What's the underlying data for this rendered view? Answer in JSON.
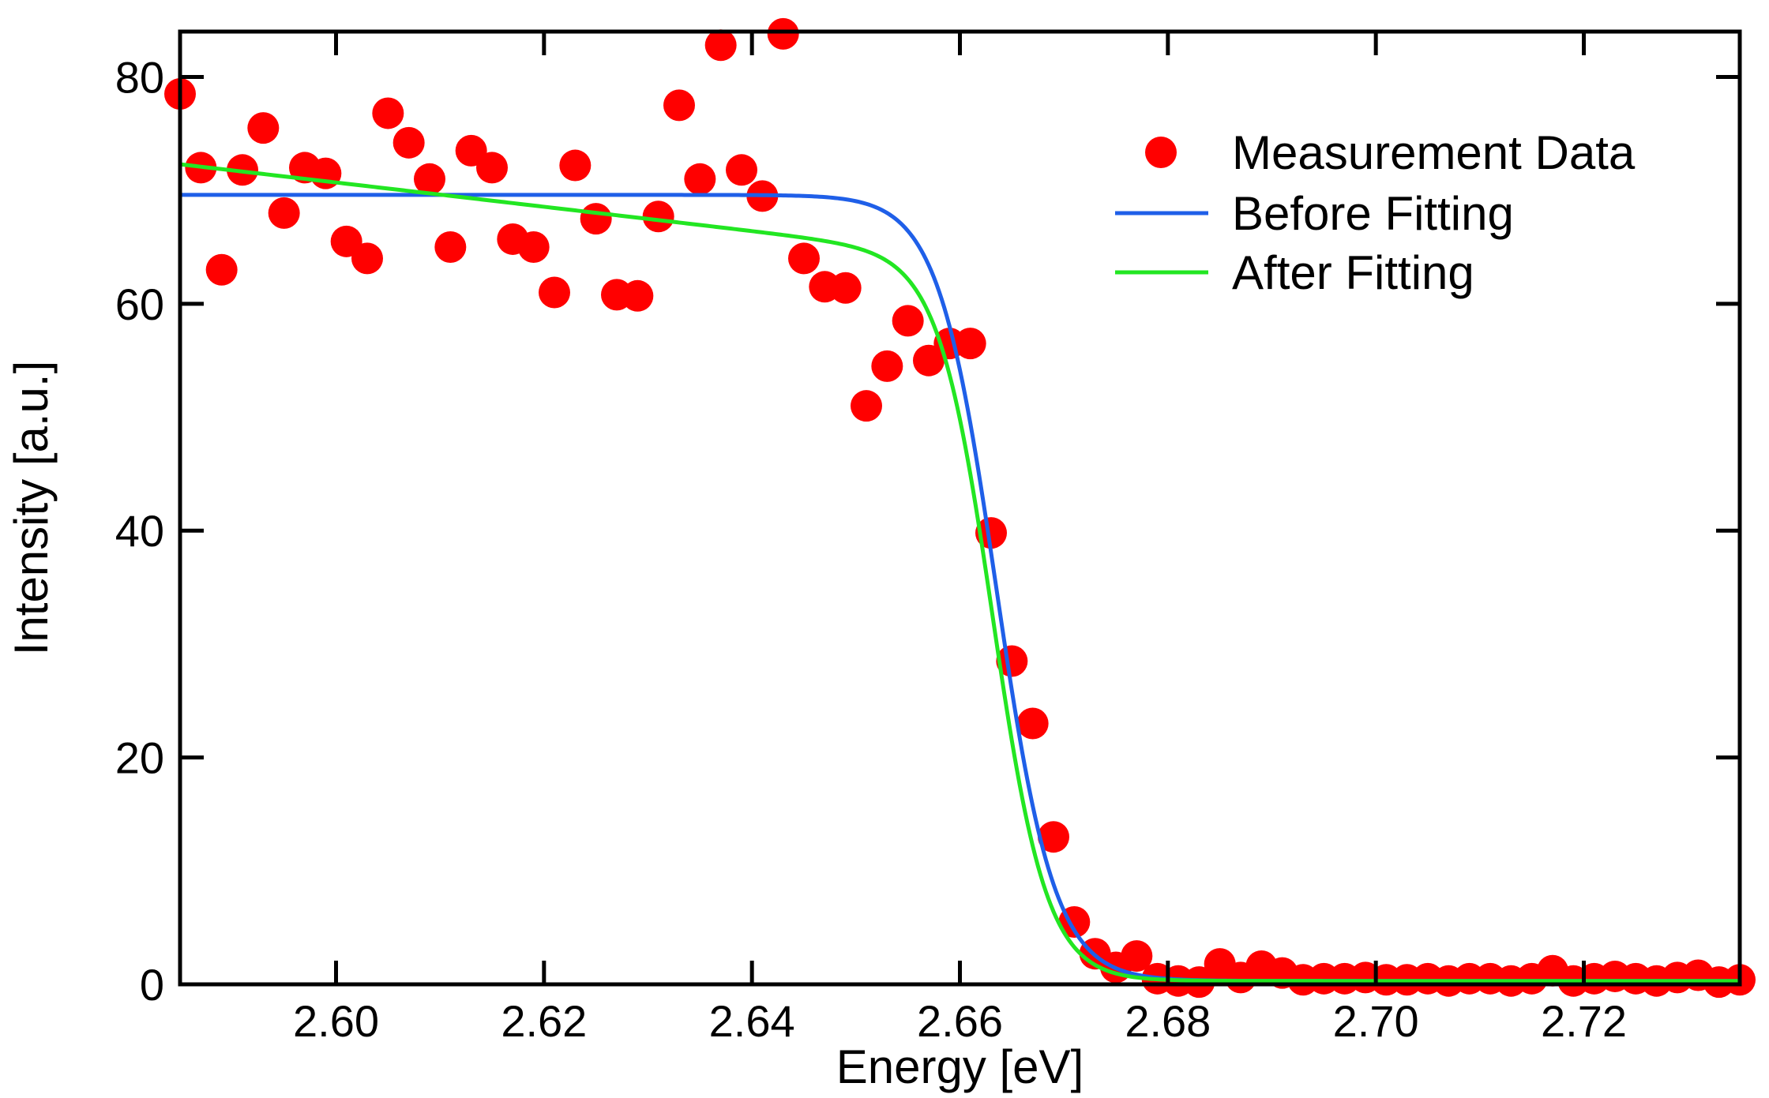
{
  "chart_data": {
    "type": "scatter",
    "xlabel": "Energy [eV]",
    "ylabel": "Intensity [a.u.]",
    "xlim": [
      2.585,
      2.735
    ],
    "ylim": [
      0,
      84
    ],
    "x_ticks": [
      2.6,
      2.62,
      2.64,
      2.66,
      2.68,
      2.7,
      2.72
    ],
    "x_tick_labels": [
      "2.60",
      "2.62",
      "2.64",
      "2.66",
      "2.68",
      "2.70",
      "2.72"
    ],
    "y_ticks": [
      0,
      20,
      40,
      60,
      80
    ],
    "y_tick_labels": [
      "0",
      "20",
      "40",
      "60",
      "80"
    ],
    "grid": false,
    "legend_position": "top-right",
    "colors": {
      "measurement": "#ff0000",
      "before": "#1f5fe8",
      "after": "#22e622",
      "axes": "#000000"
    },
    "series": [
      {
        "name": "Measurement Data",
        "type": "scatter",
        "x": [
          2.585,
          2.587,
          2.589,
          2.591,
          2.593,
          2.595,
          2.597,
          2.599,
          2.601,
          2.603,
          2.605,
          2.607,
          2.609,
          2.611,
          2.613,
          2.615,
          2.617,
          2.619,
          2.621,
          2.623,
          2.625,
          2.627,
          2.629,
          2.631,
          2.633,
          2.635,
          2.637,
          2.639,
          2.641,
          2.643,
          2.645,
          2.647,
          2.649,
          2.651,
          2.653,
          2.655,
          2.657,
          2.659,
          2.661,
          2.663,
          2.665,
          2.667,
          2.669,
          2.671,
          2.673,
          2.675,
          2.677,
          2.679,
          2.681,
          2.683,
          2.685,
          2.687,
          2.689,
          2.691,
          2.693,
          2.695,
          2.697,
          2.699,
          2.701,
          2.703,
          2.705,
          2.707,
          2.709,
          2.711,
          2.713,
          2.715,
          2.717,
          2.719,
          2.721,
          2.723,
          2.725,
          2.727,
          2.729,
          2.731,
          2.733,
          2.735
        ],
        "values": [
          78.5,
          72,
          63,
          71.8,
          75.5,
          68,
          72,
          71.5,
          65.5,
          64,
          76.8,
          74.2,
          71,
          65,
          73.5,
          72,
          65.7,
          65,
          61,
          72.2,
          67.5,
          60.8,
          60.7,
          67.7,
          77.5,
          71,
          82.8,
          71.8,
          69.5,
          83.8,
          64,
          61.5,
          61.4,
          51,
          54.5,
          58.5,
          55,
          56.5,
          56.5,
          39.8,
          28.5,
          23,
          13,
          5.5,
          2.7,
          1.5,
          2.5,
          0.5,
          0.3,
          0.2,
          1.8,
          0.6,
          1.6,
          1.0,
          0.4,
          0.5,
          0.5,
          0.6,
          0.4,
          0.4,
          0.5,
          0.3,
          0.5,
          0.5,
          0.3,
          0.5,
          1.2,
          0.3,
          0.5,
          0.7,
          0.5,
          0.3,
          0.6,
          0.8,
          0.2,
          0.4
        ]
      },
      {
        "name": "Before Fitting",
        "type": "line",
        "plateau": 69.6,
        "baseline": 0.3,
        "center": 2.6635,
        "width": 0.0028
      },
      {
        "name": "After Fitting",
        "type": "line",
        "plateau_start": 72.3,
        "slope_per_ev": -107,
        "baseline": 0.3,
        "center": 2.6632,
        "width": 0.0026
      }
    ]
  }
}
